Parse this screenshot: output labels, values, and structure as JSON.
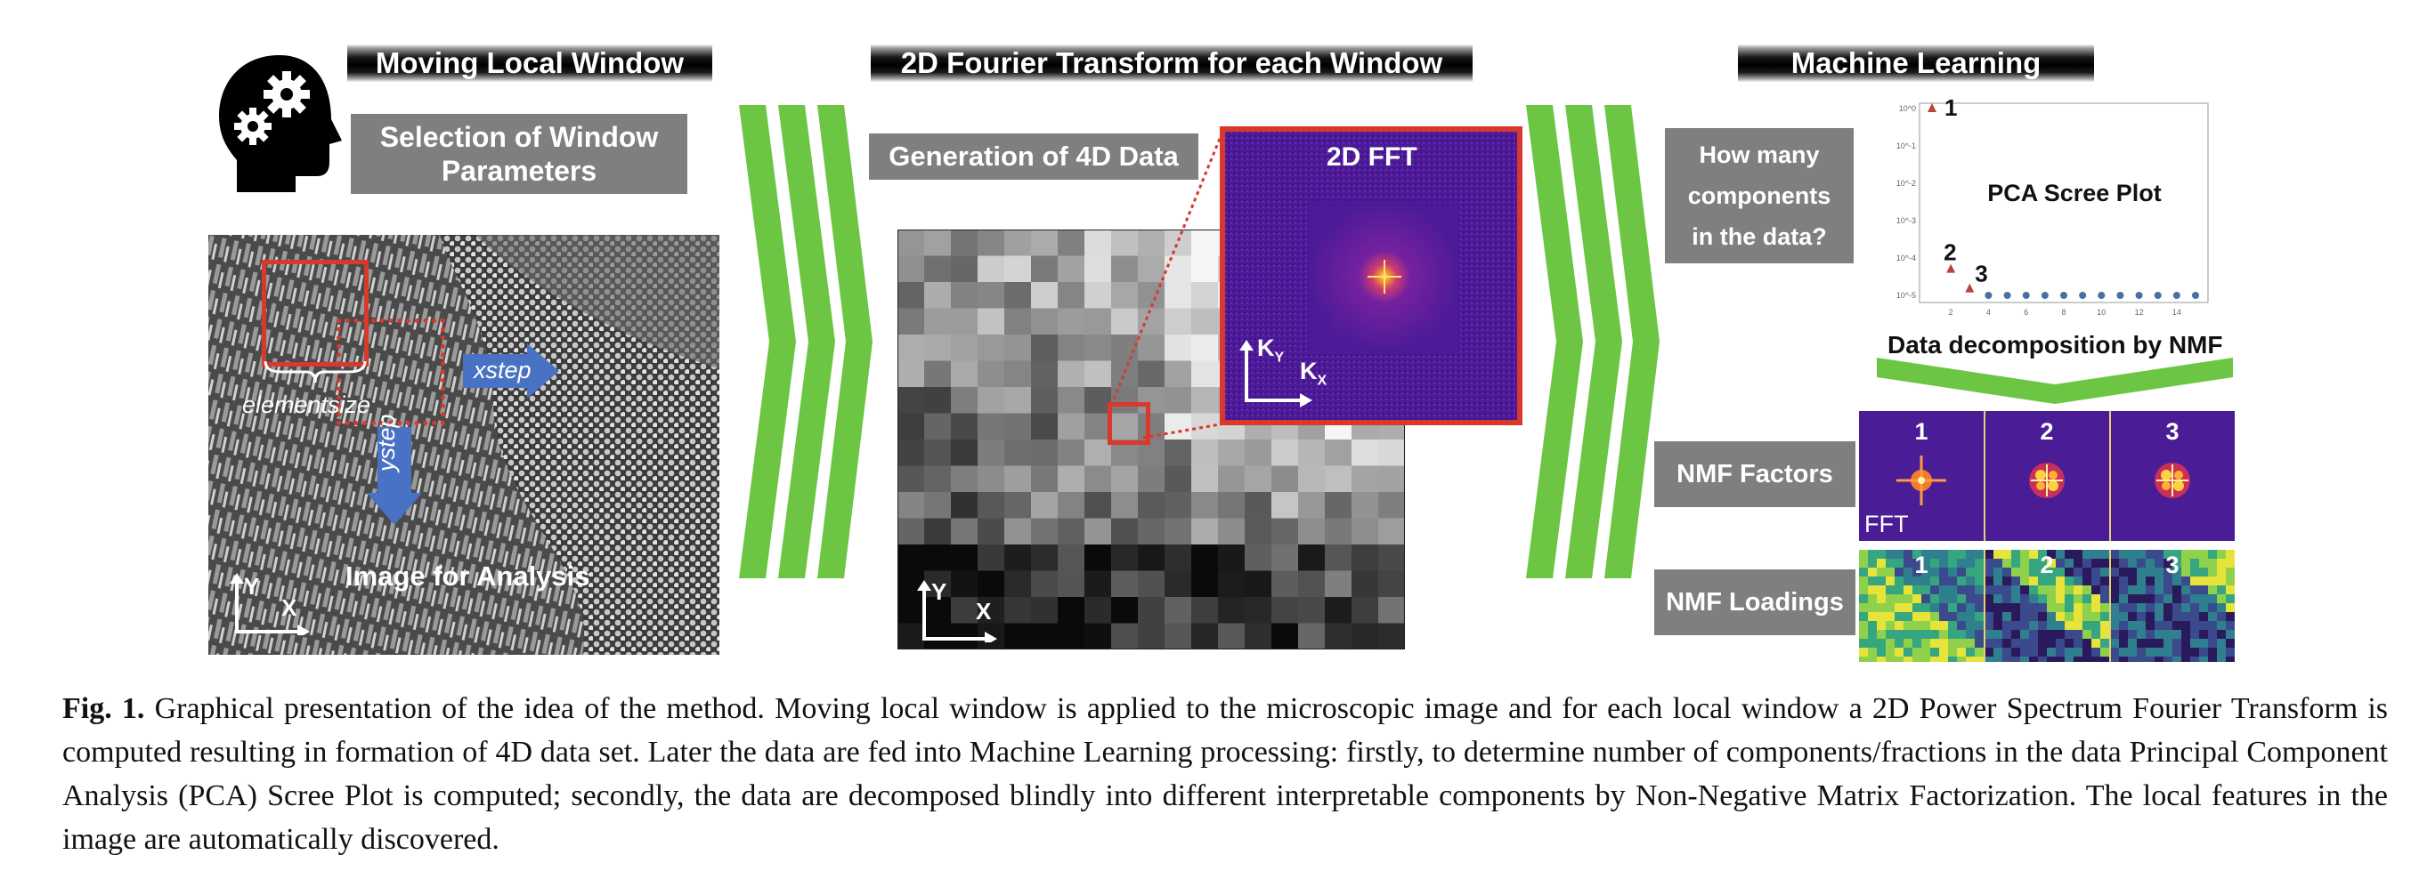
{
  "headers": {
    "moving_window": "Moving Local Window",
    "fourier": "2D Fourier Transform for each Window",
    "ml": "Machine Learning"
  },
  "panel1": {
    "selection_box": "Selection of Window Parameters",
    "xstep": "xstep",
    "ystep": "ystep",
    "elementsize": "elementsize",
    "image_label": "Image for Analysis",
    "axis_y": "Y",
    "axis_x": "X"
  },
  "panel2": {
    "generation_label": "Generation of 4D Data",
    "fft_title": "2D FFT",
    "ky": "K",
    "ky_sub": "Y",
    "kx": "K",
    "kx_sub": "X",
    "axis_y": "Y",
    "axis_x": "X"
  },
  "panel3": {
    "question": "How many components in the data?",
    "scree_title": "PCA Scree Plot",
    "decomposition": "Data decomposition by NMF",
    "nmf_factors": "NMF Factors",
    "nmf_loadings": "NMF Loadings",
    "fft_tag": "FFT",
    "factor_numbers": [
      "1",
      "2",
      "3"
    ],
    "loading_numbers": [
      "1",
      "2",
      "3"
    ]
  },
  "chart_data": {
    "type": "scatter",
    "title": "PCA Scree Plot",
    "yscale": "log",
    "x": [
      1,
      2,
      3,
      4,
      5,
      6,
      7,
      8,
      9,
      10,
      11,
      12,
      13,
      14,
      15
    ],
    "y_ticks": [
      "10^0",
      "10^-1",
      "10^-2",
      "10^-3",
      "10^-4",
      "10^-5"
    ],
    "x_ticks": [
      "2",
      "4",
      "6",
      "8",
      "10",
      "12",
      "14"
    ],
    "point_labels": [
      "1",
      "2",
      "3"
    ],
    "highlighted_points": [
      {
        "label": "1",
        "x": 1,
        "y": 1.0
      },
      {
        "label": "2",
        "x": 2,
        "y": 5e-05
      },
      {
        "label": "3",
        "x": 3,
        "y": 1.5e-05
      }
    ],
    "other_values": [
      1e-05,
      1e-05,
      1e-05,
      1e-05,
      1e-05,
      1e-05,
      1e-05,
      1e-05,
      1e-05,
      1e-05,
      1e-05,
      1e-05
    ],
    "colors": {
      "highlighted": "#b5453a",
      "others": "#4a6fa5"
    }
  },
  "caption": {
    "label": "Fig. 1.",
    "text": "Graphical presentation of the idea of the method. Moving local window is applied to the microscopic image and for each local window a 2D Power Spectrum Fourier Transform is computed resulting in formation of 4D data set. Later the data are fed into Machine Learning processing: firstly, to determine number of components/fractions in the data Principal Component Analysis (PCA) Scree Plot is computed; secondly, the data are decomposed blindly into different interpretable components by Non-Negative Matrix Factorization. The local features in the image are automatically discovered."
  },
  "colors": {
    "green_arrow": "#6cc644",
    "red": "#d9382c",
    "blue_arrow": "#4a72c4",
    "gray_box": "#7f7f7f",
    "fft_purple": "#5a1fa0"
  }
}
